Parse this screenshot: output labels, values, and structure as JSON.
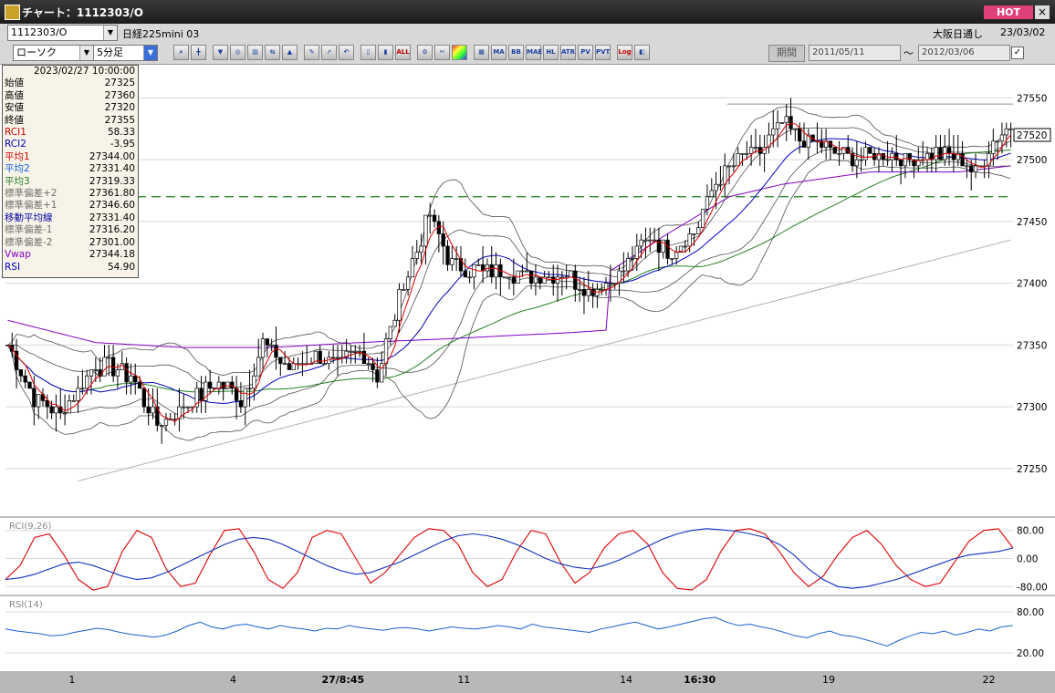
{
  "window": {
    "title": "チャート：1112303/O",
    "hot": "HOT",
    "close": "×"
  },
  "toolbar": {
    "symbol": "1112303/O",
    "name": "日経225mini 03",
    "exchange": "大阪日通し",
    "date": "23/03/02",
    "chart_type": "ローソク",
    "interval": "5分足",
    "period_button": "期間",
    "period_from": "2011/05/11",
    "tilde": "〜",
    "period_to": "2012/03/06",
    "icon_labels": [
      "MA",
      "BB",
      "MAE",
      "HL",
      "ATR",
      "PV",
      "PVT",
      "Log",
      "ALL"
    ]
  },
  "info_panel": {
    "datetime": "2023/02/27  10:00:00",
    "rows": [
      {
        "label": "始値",
        "value": "27325",
        "color": "#000000"
      },
      {
        "label": "高値",
        "value": "27360",
        "color": "#000000"
      },
      {
        "label": "安値",
        "value": "27320",
        "color": "#000000"
      },
      {
        "label": "終値",
        "value": "27355",
        "color": "#000000"
      },
      {
        "label": "RCI1",
        "value": "58.33",
        "color": "#d00000"
      },
      {
        "label": "RCI2",
        "value": "-3.95",
        "color": "#0000c0"
      },
      {
        "label": "平均1",
        "value": "27344.00",
        "color": "#d00000"
      },
      {
        "label": "平均2",
        "value": "27331.40",
        "color": "#1060e0"
      },
      {
        "label": "平均3",
        "value": "27319.33",
        "color": "#208020"
      },
      {
        "label": "標準偏差+2",
        "value": "27361.80",
        "color": "#707070"
      },
      {
        "label": "標準偏差+1",
        "value": "27346.60",
        "color": "#707070"
      },
      {
        "label": "移動平均線",
        "value": "27331.40",
        "color": "#0000a0"
      },
      {
        "label": "標準偏差-1",
        "value": "27316.20",
        "color": "#707070"
      },
      {
        "label": "標準偏差-2",
        "value": "27301.00",
        "color": "#707070"
      },
      {
        "label": "Vwap",
        "value": "27344.18",
        "color": "#8000c0"
      },
      {
        "label": "RSI",
        "value": "54.90",
        "color": "#0000c0"
      }
    ]
  },
  "panels": {
    "rci_label": "RCI(9,26)",
    "rsi_label": "RSI(14)"
  },
  "chart_data": [
    {
      "type": "candlestick",
      "title": "",
      "ylim": [
        27230,
        27565
      ],
      "y_ticks": [
        27550,
        27500,
        27450,
        27400,
        27350,
        27300,
        27250
      ],
      "current_price_label": "27520",
      "dashed_level": 27470,
      "resistance_level": 27545,
      "x_labels": [
        {
          "label": "1",
          "pos": 0.066,
          "bold": false
        },
        {
          "label": "4",
          "pos": 0.226,
          "bold": false
        },
        {
          "label": "27/8:45",
          "pos": 0.335,
          "bold": true
        },
        {
          "label": "11",
          "pos": 0.455,
          "bold": false
        },
        {
          "label": "14",
          "pos": 0.616,
          "bold": false
        },
        {
          "label": "16:30",
          "pos": 0.689,
          "bold": true
        },
        {
          "label": "19",
          "pos": 0.817,
          "bold": false
        },
        {
          "label": "22",
          "pos": 0.976,
          "bold": false
        }
      ],
      "close_keypoints": [
        [
          0,
          27350
        ],
        [
          6,
          27305
        ],
        [
          12,
          27295
        ],
        [
          20,
          27335
        ],
        [
          28,
          27325
        ],
        [
          34,
          27285
        ],
        [
          40,
          27300
        ],
        [
          48,
          27320
        ],
        [
          53,
          27305
        ],
        [
          58,
          27350
        ],
        [
          64,
          27330
        ],
        [
          70,
          27340
        ],
        [
          76,
          27335
        ],
        [
          80,
          27345
        ],
        [
          84,
          27325
        ],
        [
          90,
          27400
        ],
        [
          96,
          27455
        ],
        [
          100,
          27420
        ],
        [
          106,
          27410
        ],
        [
          112,
          27410
        ],
        [
          120,
          27405
        ],
        [
          126,
          27410
        ],
        [
          132,
          27395
        ],
        [
          138,
          27405
        ],
        [
          142,
          27420
        ],
        [
          146,
          27440
        ],
        [
          150,
          27425
        ],
        [
          156,
          27440
        ],
        [
          160,
          27475
        ],
        [
          166,
          27500
        ],
        [
          172,
          27510
        ],
        [
          176,
          27530
        ],
        [
          180,
          27515
        ],
        [
          186,
          27510
        ],
        [
          192,
          27500
        ],
        [
          198,
          27505
        ],
        [
          204,
          27500
        ],
        [
          210,
          27505
        ],
        [
          216,
          27500
        ],
        [
          220,
          27490
        ],
        [
          224,
          27515
        ],
        [
          228,
          27525
        ]
      ],
      "vwap_keypoints": [
        [
          0,
          27370
        ],
        [
          20,
          27352
        ],
        [
          40,
          27348
        ],
        [
          60,
          27348
        ],
        [
          80,
          27352
        ],
        [
          100,
          27355
        ],
        [
          116,
          27358
        ],
        [
          128,
          27360
        ],
        [
          136,
          27362
        ],
        [
          137,
          27410
        ],
        [
          150,
          27440
        ],
        [
          164,
          27470
        ],
        [
          176,
          27480
        ],
        [
          196,
          27490
        ],
        [
          216,
          27490
        ],
        [
          228,
          27495
        ]
      ],
      "trendline": [
        [
          16,
          27240
        ],
        [
          228,
          27435
        ]
      ]
    },
    {
      "type": "line",
      "title": "RCI(9,26)",
      "ylim": [
        -100,
        100
      ],
      "y_ticks": [
        80,
        0,
        -80
      ],
      "series": [
        {
          "name": "RCI1",
          "color": "#e00000",
          "values": [
            -60,
            -20,
            60,
            70,
            10,
            -60,
            -90,
            -80,
            20,
            80,
            60,
            -30,
            -80,
            -70,
            10,
            80,
            85,
            20,
            -60,
            -85,
            -40,
            60,
            80,
            70,
            0,
            -70,
            -40,
            10,
            60,
            85,
            80,
            40,
            -40,
            -80,
            -60,
            20,
            80,
            70,
            -10,
            -70,
            -40,
            30,
            70,
            80,
            40,
            -40,
            -85,
            -90,
            -60,
            20,
            80,
            85,
            70,
            20,
            -40,
            -80,
            -50,
            10,
            60,
            80,
            40,
            -20,
            -60,
            -80,
            -70,
            -10,
            50,
            80,
            85,
            30
          ]
        },
        {
          "name": "RCI2",
          "color": "#1030c0",
          "values": [
            -60,
            -55,
            -45,
            -30,
            -15,
            -10,
            -20,
            -35,
            -50,
            -60,
            -55,
            -40,
            -20,
            0,
            20,
            40,
            55,
            60,
            55,
            40,
            20,
            0,
            -20,
            -35,
            -45,
            -40,
            -25,
            -10,
            10,
            30,
            50,
            65,
            70,
            65,
            55,
            40,
            20,
            0,
            -15,
            -25,
            -30,
            -20,
            -5,
            15,
            35,
            55,
            70,
            80,
            85,
            82,
            78,
            70,
            60,
            40,
            10,
            -30,
            -60,
            -80,
            -85,
            -80,
            -70,
            -60,
            -45,
            -30,
            -15,
            0,
            10,
            15,
            20,
            30
          ]
        }
      ]
    },
    {
      "type": "line",
      "title": "RSI(14)",
      "ylim": [
        0,
        100
      ],
      "y_ticks": [
        80,
        20
      ],
      "series": [
        {
          "name": "RSI",
          "color": "#1860d0",
          "values": [
            55,
            52,
            50,
            48,
            45,
            46,
            50,
            53,
            56,
            54,
            50,
            47,
            45,
            43,
            46,
            52,
            60,
            65,
            58,
            55,
            60,
            62,
            58,
            55,
            60,
            57,
            55,
            52,
            56,
            55,
            60,
            57,
            55,
            53,
            56,
            57,
            55,
            52,
            55,
            58,
            56,
            55,
            57,
            60,
            58,
            55,
            62,
            58,
            56,
            54,
            52,
            50,
            55,
            58,
            62,
            65,
            60,
            55,
            58,
            62,
            66,
            70,
            72,
            65,
            60,
            62,
            58,
            55,
            50,
            45,
            42,
            48,
            52,
            46,
            44,
            40,
            35,
            30,
            38,
            45,
            50,
            48,
            52,
            46,
            50,
            55,
            52,
            58,
            60
          ]
        }
      ]
    }
  ]
}
